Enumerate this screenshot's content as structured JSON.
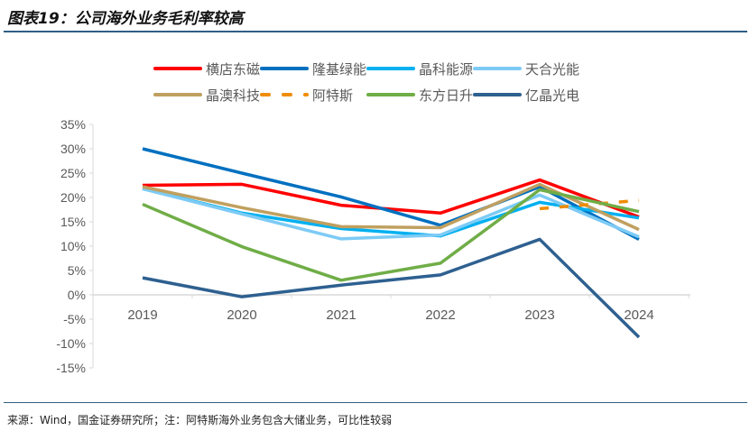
{
  "title": "图表19：公司海外业务毛利率较高",
  "source": "来源：Wind，国金证券研究所；注：阿特斯海外业务包含大储业务，可比性较弱",
  "chart_data": {
    "type": "line",
    "categories": [
      "2019",
      "2020",
      "2021",
      "2022",
      "2023",
      "2024"
    ],
    "ylim": [
      -15,
      35
    ],
    "yticks": [
      -15,
      -10,
      -5,
      0,
      5,
      10,
      15,
      20,
      25,
      30,
      35
    ],
    "ytick_labels": [
      "-15%",
      "-10%",
      "-5%",
      "0%",
      "5%",
      "10%",
      "15%",
      "20%",
      "25%",
      "30%",
      "35%"
    ],
    "legend_position": "top",
    "grid": false,
    "series": [
      {
        "name": "横店东磁",
        "color": "#FF0000",
        "dash": false,
        "values": [
          22.5,
          22.7,
          18.4,
          16.8,
          23.6,
          16.0
        ]
      },
      {
        "name": "隆基绿能",
        "color": "#0070C0",
        "dash": false,
        "values": [
          30.0,
          25.0,
          20.1,
          14.3,
          22.2,
          11.4
        ]
      },
      {
        "name": "晶科能源",
        "color": "#00B0F0",
        "dash": false,
        "values": [
          21.8,
          16.8,
          13.6,
          12.1,
          19.0,
          15.8
        ]
      },
      {
        "name": "天合光能",
        "color": "#7DCBF5",
        "dash": false,
        "values": [
          21.8,
          16.6,
          11.5,
          12.3,
          20.5,
          11.9
        ]
      },
      {
        "name": "晶澳科技",
        "color": "#C0A060",
        "dash": false,
        "values": [
          22.2,
          17.9,
          14.0,
          13.8,
          22.7,
          13.4
        ]
      },
      {
        "name": "阿特斯",
        "color": "#F08C00",
        "dash": true,
        "values": [
          null,
          null,
          null,
          null,
          17.7,
          19.4
        ]
      },
      {
        "name": "东方日升",
        "color": "#70AD47",
        "dash": false,
        "values": [
          18.6,
          9.9,
          3.0,
          6.5,
          21.6,
          17.1
        ]
      },
      {
        "name": "亿晶光电",
        "color": "#2E6090",
        "dash": false,
        "values": [
          3.5,
          -0.4,
          2.0,
          4.1,
          11.4,
          -8.7
        ]
      }
    ]
  }
}
